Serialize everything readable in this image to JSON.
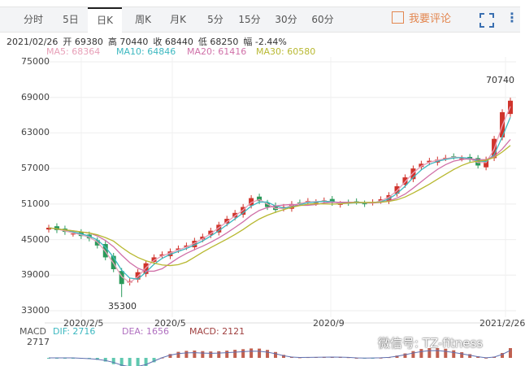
{
  "tabs": [
    {
      "label": "分时"
    },
    {
      "label": "5日"
    },
    {
      "label": "日K",
      "active": true
    },
    {
      "label": "周K"
    },
    {
      "label": "月K"
    },
    {
      "label": "5分"
    },
    {
      "label": "15分"
    },
    {
      "label": "30分"
    },
    {
      "label": "60分"
    }
  ],
  "toolbar": {
    "comment": "我要评论",
    "comment_icon": "edit-icon",
    "fullscreen_icon": "fullscreen-icon",
    "more_icon": "more-vertical-icon"
  },
  "info": {
    "date": "2021/02/26",
    "open": "开 69380",
    "high": "高 70440",
    "close": "收 68440",
    "low": "低 68250",
    "change": "幅 -2.44%"
  },
  "ma": [
    {
      "label": "MA5: 68364",
      "color": "#e8a0b8"
    },
    {
      "label": "MA10: 64846",
      "color": "#3cb8c0"
    },
    {
      "label": "MA20: 61416",
      "color": "#d070a8"
    },
    {
      "label": "MA30: 60580",
      "color": "#b8b830"
    }
  ],
  "macd": {
    "title": "MACD",
    "dif": "DIF: 2716",
    "dea": "DEA: 1656",
    "value": "MACD: 2121",
    "top": "2717"
  },
  "watermark": "微信号: TZ-fitness",
  "colors": {
    "up": "#d0342c",
    "down": "#2a9a5a"
  },
  "chart_data": {
    "type": "candlestick",
    "yticks": [
      75000,
      69000,
      63000,
      57000,
      51000,
      45000,
      39000,
      33000
    ],
    "ylim": [
      33000,
      75000
    ],
    "xticks": [
      "2020/2/5",
      "2020/5",
      "2020/9",
      "2021/2/26"
    ],
    "annotations": [
      {
        "label": "70740",
        "type": "max"
      },
      {
        "label": "35300",
        "type": "min"
      }
    ],
    "closes": [
      47000,
      46600,
      46300,
      46000,
      45600,
      45200,
      44000,
      42000,
      40000,
      37500,
      38000,
      39500,
      41000,
      42000,
      42500,
      43000,
      43500,
      44000,
      44800,
      45500,
      46500,
      47500,
      48500,
      49500,
      50500,
      52000,
      51500,
      50500,
      50000,
      50500,
      51000,
      51200,
      51500,
      51300,
      51600,
      51200,
      51000,
      51200,
      51400,
      51000,
      51300,
      51800,
      52500,
      54000,
      55500,
      57000,
      57800,
      58300,
      58500,
      58800,
      59000,
      58700,
      58500,
      57500,
      58500,
      62000,
      66500,
      68440
    ]
  }
}
